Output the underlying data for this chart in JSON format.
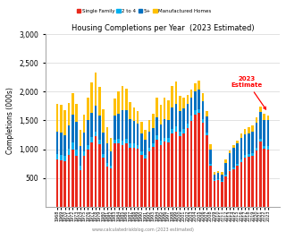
{
  "title": "Housing Completions per Year  (2023 Estimated)",
  "ylabel": "Completions (000s)",
  "footnote": "www.calculatedriskblog.com (2023 estimated)",
  "annotation": "2023\nEstimate",
  "years": [
    1968,
    1969,
    1970,
    1971,
    1972,
    1973,
    1974,
    1975,
    1976,
    1977,
    1978,
    1979,
    1980,
    1981,
    1982,
    1983,
    1984,
    1985,
    1986,
    1987,
    1988,
    1989,
    1990,
    1991,
    1992,
    1993,
    1994,
    1995,
    1996,
    1997,
    1998,
    1999,
    2000,
    2001,
    2002,
    2003,
    2004,
    2005,
    2006,
    2007,
    2008,
    2009,
    2010,
    2011,
    2012,
    2013,
    2014,
    2015,
    2016,
    2017,
    2018,
    2019,
    2020,
    2021,
    2022,
    2023
  ],
  "single_family": [
    820,
    810,
    793,
    906,
    1000,
    890,
    630,
    892,
    1000,
    1126,
    1220,
    1090,
    852,
    705,
    663,
    1100,
    1100,
    1072,
    1100,
    1020,
    1026,
    1003,
    895,
    840,
    960,
    1039,
    1160,
    1076,
    1129,
    1119,
    1271,
    1302,
    1230,
    1271,
    1360,
    1499,
    1600,
    1631,
    1465,
    1237,
    720,
    445,
    471,
    430,
    535,
    618,
    648,
    714,
    783,
    849,
    876,
    888,
    979,
    1128,
    1011,
    1000
  ],
  "two_to_four": [
    100,
    90,
    85,
    100,
    120,
    110,
    90,
    65,
    70,
    80,
    85,
    80,
    70,
    55,
    45,
    70,
    80,
    75,
    85,
    80,
    75,
    65,
    65,
    55,
    60,
    65,
    80,
    70,
    75,
    75,
    85,
    90,
    80,
    80,
    80,
    85,
    80,
    70,
    60,
    50,
    30,
    20,
    15,
    15,
    20,
    25,
    30,
    35,
    40,
    45,
    45,
    45,
    50,
    55,
    50,
    50
  ],
  "five_plus": [
    380,
    390,
    370,
    410,
    480,
    480,
    340,
    340,
    430,
    430,
    450,
    420,
    370,
    340,
    250,
    410,
    430,
    530,
    490,
    430,
    390,
    370,
    310,
    265,
    280,
    270,
    310,
    280,
    325,
    320,
    370,
    390,
    360,
    360,
    340,
    320,
    330,
    340,
    310,
    280,
    250,
    90,
    100,
    110,
    210,
    290,
    340,
    350,
    380,
    370,
    355,
    380,
    430,
    470,
    450,
    450
  ],
  "manufactured": [
    480,
    480,
    430,
    390,
    370,
    310,
    280,
    310,
    400,
    530,
    570,
    500,
    400,
    280,
    240,
    300,
    400,
    420,
    380,
    290,
    230,
    220,
    210,
    170,
    200,
    250,
    340,
    340,
    370,
    340,
    370,
    390,
    250,
    180,
    170,
    130,
    130,
    150,
    140,
    100,
    80,
    50,
    40,
    50,
    55,
    50,
    50,
    55,
    65,
    90,
    100,
    95,
    90,
    90,
    100,
    90
  ],
  "colors": {
    "single_family": "#e8291c",
    "two_to_four": "#00b0f0",
    "five_plus": "#0070c0",
    "manufactured": "#ffc000"
  },
  "ylim": [
    0,
    3000
  ],
  "yticks": [
    500,
    1000,
    1500,
    2000,
    2500,
    3000
  ],
  "background_color": "#ffffff"
}
